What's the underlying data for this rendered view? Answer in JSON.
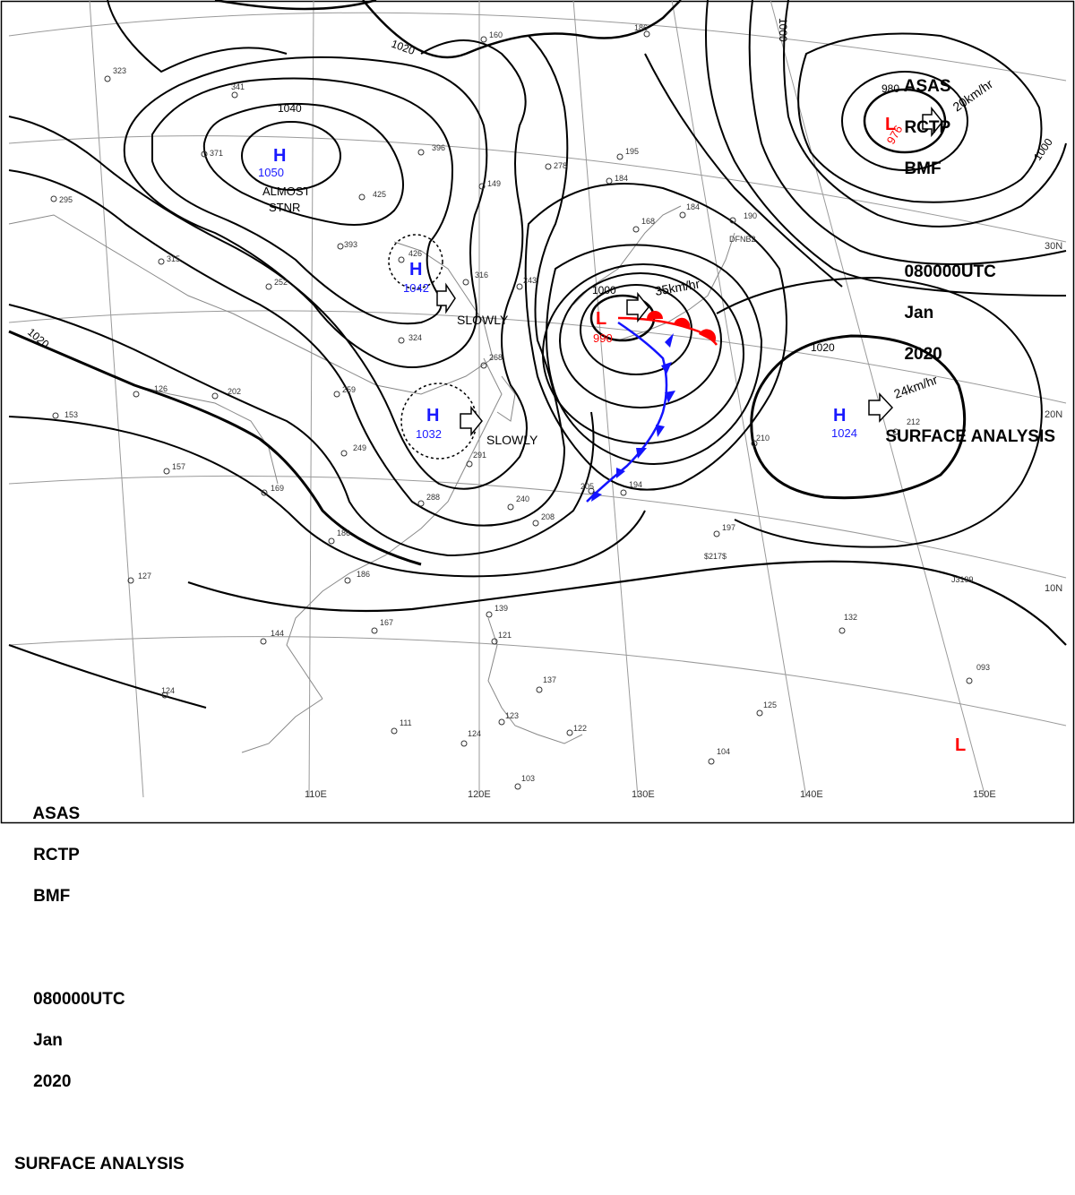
{
  "header": {
    "line1": [
      "ASAS",
      "RCTP",
      "BMF"
    ],
    "line2": [
      "080000UTC",
      "Jan",
      "2020"
    ],
    "line3": "SURFACE ANALYSIS"
  },
  "colors": {
    "high": "#1a1aff",
    "low": "#ff0000",
    "cold_front": "#1414ff",
    "warm_front": "#ff0000",
    "isobar": "#000000",
    "coast": "#888888",
    "grid": "#9a9a9a"
  },
  "pressure_centers": [
    {
      "type": "H",
      "value": "1050",
      "note": [
        "ALMOST",
        "STNR"
      ]
    },
    {
      "type": "H",
      "value": "1042",
      "motion": "SLOWLY"
    },
    {
      "type": "H",
      "value": "1032",
      "motion": "SLOWLY"
    },
    {
      "type": "L",
      "value": "990",
      "motion": "35km/hr"
    },
    {
      "type": "L",
      "value": "976",
      "motion": "20km/hr"
    },
    {
      "type": "H",
      "value": "1024",
      "motion": "24km/hr"
    },
    {
      "type": "L",
      "value": ""
    }
  ],
  "isobar_labels": [
    "1020",
    "1040",
    "1020",
    "1000",
    "980",
    "1000",
    "1000",
    "1020"
  ],
  "longitude_labels": [
    "110E",
    "120E",
    "130E",
    "140E",
    "150E"
  ],
  "latitude_labels": [
    "30N",
    "20N",
    "10N"
  ],
  "station_values": [
    "323",
    "341",
    "160",
    "186",
    "371",
    "396",
    "195",
    "184",
    "425",
    "149",
    "278",
    "295",
    "393",
    "426",
    "190",
    "316",
    "243",
    "315",
    "252",
    "324",
    "268",
    "259",
    "126",
    "202",
    "153",
    "210",
    "212",
    "291",
    "249",
    "157",
    "169",
    "288",
    "240",
    "208",
    "205",
    "186",
    "197",
    "127",
    "186",
    "167",
    "139",
    "121",
    "144",
    "124",
    "111",
    "132",
    "137",
    "123",
    "122",
    "093",
    "125",
    "124",
    "104",
    "103",
    "194",
    "168",
    "184",
    "DFNB2",
    "$217$",
    "J3199"
  ]
}
